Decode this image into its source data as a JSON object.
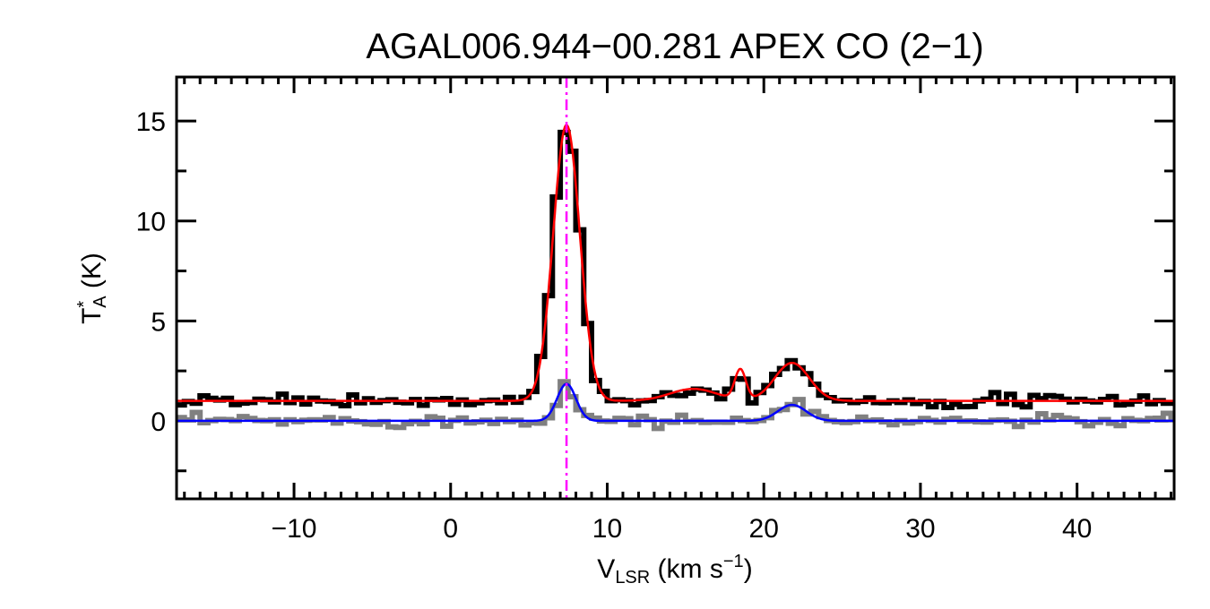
{
  "chart_data": {
    "type": "line",
    "title": "AGAL006.944−00.281   APEX CO (2−1)",
    "xlabel": {
      "main": "V",
      "sub": "LSR",
      "rest": " (km s",
      "sup": "−1",
      "end": ")"
    },
    "ylabel": {
      "main": "T",
      "sup": "*",
      "sub": "A",
      "rest": " (K)"
    },
    "xlim": [
      -17.5,
      46.2
    ],
    "ylim": [
      -3.9,
      17.2
    ],
    "xticks": [
      -10,
      0,
      10,
      20,
      30,
      40
    ],
    "xtick_labels": [
      "−10",
      "0",
      "10",
      "20",
      "30",
      "40"
    ],
    "yticks": [
      0,
      5,
      10,
      15
    ],
    "ytick_labels": [
      "0",
      "5",
      "10",
      "15"
    ],
    "x_minor_step": 1,
    "y_minor_step": 2.5,
    "grid": false,
    "vline": {
      "x": 7.4,
      "color": "#ff00ff",
      "style": "dash-dot"
    },
    "series": [
      {
        "kind": "spectrum-histogram",
        "color": "#000000",
        "channel_width": 0.5,
        "baseline": 1.0,
        "noise_rms": 0.15,
        "components": [
          {
            "center": 7.4,
            "amp": 13.8,
            "sigma": 0.85
          },
          {
            "center": 15.5,
            "amp": 0.6,
            "sigma": 1.5
          },
          {
            "center": 18.5,
            "amp": 1.5,
            "sigma": 0.35
          },
          {
            "center": 21.8,
            "amp": 2.0,
            "sigma": 1.1
          }
        ]
      },
      {
        "kind": "spectrum-histogram",
        "color": "#808080",
        "channel_width": 0.5,
        "baseline": 0.0,
        "noise_rms": 0.15,
        "components": [
          {
            "center": 7.4,
            "amp": 1.9,
            "sigma": 0.6
          },
          {
            "center": 21.8,
            "amp": 0.85,
            "sigma": 0.9
          }
        ]
      },
      {
        "kind": "gaussian-fit",
        "color": "#ff0000",
        "baseline": 1.0,
        "components": [
          {
            "center": 7.4,
            "amp": 13.8,
            "sigma": 0.85
          },
          {
            "center": 15.5,
            "amp": 0.6,
            "sigma": 1.5
          },
          {
            "center": 18.5,
            "amp": 1.5,
            "sigma": 0.35
          },
          {
            "center": 21.8,
            "amp": 1.9,
            "sigma": 1.1
          }
        ]
      },
      {
        "kind": "gaussian-fit",
        "color": "#0000ff",
        "baseline": 0.0,
        "components": [
          {
            "center": 7.4,
            "amp": 1.85,
            "sigma": 0.6
          },
          {
            "center": 21.8,
            "amp": 0.8,
            "sigma": 0.9
          }
        ]
      }
    ]
  }
}
